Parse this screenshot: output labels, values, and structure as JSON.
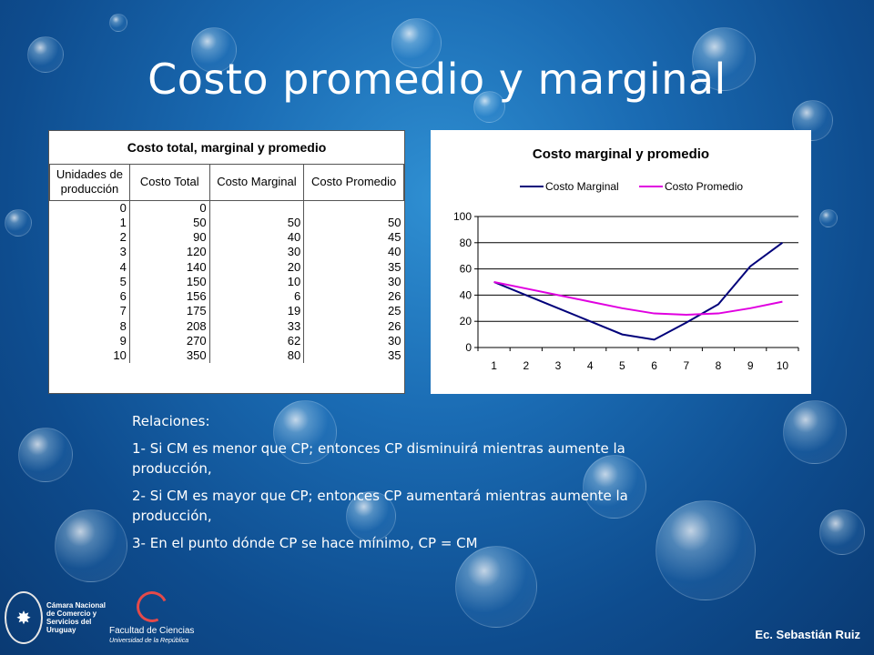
{
  "title": "Costo promedio y marginal",
  "table": {
    "caption": "Costo total, marginal y promedio",
    "headers": [
      "Unidades de producción",
      "Costo Total",
      "Costo Marginal",
      "Costo Promedio"
    ],
    "rows": [
      [
        "0",
        "0",
        "",
        ""
      ],
      [
        "1",
        "50",
        "50",
        "50"
      ],
      [
        "2",
        "90",
        "40",
        "45"
      ],
      [
        "3",
        "120",
        "30",
        "40"
      ],
      [
        "4",
        "140",
        "20",
        "35"
      ],
      [
        "5",
        "150",
        "10",
        "30"
      ],
      [
        "6",
        "156",
        "6",
        "26"
      ],
      [
        "7",
        "175",
        "19",
        "25"
      ],
      [
        "8",
        "208",
        "33",
        "26"
      ],
      [
        "9",
        "270",
        "62",
        "30"
      ],
      [
        "10",
        "350",
        "80",
        "35"
      ]
    ]
  },
  "chart_data": {
    "type": "line",
    "title": "Costo marginal y promedio",
    "x": [
      1,
      2,
      3,
      4,
      5,
      6,
      7,
      8,
      9,
      10
    ],
    "series": [
      {
        "name": "Costo Marginal",
        "color": "#00007a",
        "values": [
          50,
          40,
          30,
          20,
          10,
          6,
          19,
          33,
          62,
          80
        ]
      },
      {
        "name": "Costo Promedio",
        "color": "#e000e0",
        "values": [
          50,
          45,
          40,
          35,
          30,
          26,
          25,
          26,
          30,
          35
        ]
      }
    ],
    "ylim": [
      0,
      100
    ],
    "yticks": [
      "0",
      "20",
      "40",
      "60",
      "80",
      "100"
    ],
    "xticks": [
      "1",
      "2",
      "3",
      "4",
      "5",
      "6",
      "7",
      "8",
      "9",
      "10"
    ],
    "grid": "horizontal",
    "legend": "top"
  },
  "relations": {
    "heading": "Relaciones:",
    "items": [
      "1- Si CM es menor que CP; entonces CP disminuirá mientras aumente la producción,",
      "2- Si CM es mayor que CP; entonces CP aumentará mientras aumente la producción,",
      "3- En el punto dónde CP se hace mínimo, CP = CM"
    ]
  },
  "footer": {
    "chamber": [
      "Cámara Nacional",
      "de Comercio y",
      "Servicios del",
      "Uruguay"
    ],
    "faculty": "Facultad de Ciencias",
    "university": "Universidad de la República",
    "signature": "Ec. Sebastián Ruiz"
  }
}
